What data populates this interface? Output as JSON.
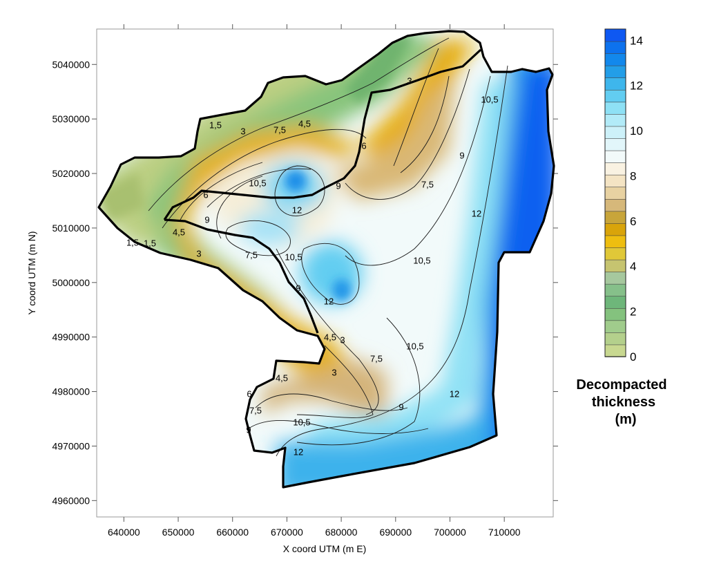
{
  "chart_data": {
    "type": "contour-map",
    "x_axis": {
      "label": "X coord UTM (m E)",
      "range": [
        635000,
        719000
      ],
      "ticks": [
        640000,
        650000,
        660000,
        670000,
        680000,
        690000,
        700000,
        710000
      ],
      "tick_labels": [
        "640000",
        "650000",
        "660000",
        "670000",
        "680000",
        "690000",
        "700000",
        "710000"
      ]
    },
    "y_axis": {
      "label": "Y coord UTM (m N)",
      "range": [
        4957000,
        5046500
      ],
      "ticks": [
        4960000,
        4970000,
        4980000,
        4990000,
        5000000,
        5010000,
        5020000,
        5030000,
        5040000
      ],
      "tick_labels": [
        "4960000",
        "4970000",
        "4980000",
        "4990000",
        "5000000",
        "5010000",
        "5020000",
        "5030000",
        "5040000"
      ]
    },
    "colorbar": {
      "title": [
        "Decompacted",
        "thickness",
        "(m)"
      ],
      "range": [
        0,
        14.5
      ],
      "tick_values": [
        0,
        2,
        4,
        6,
        8,
        10,
        12,
        14
      ],
      "tick_labels": [
        "0",
        "2",
        "4",
        "6",
        "8",
        "10",
        "12",
        "14"
      ],
      "class_colors": [
        "#c8d890",
        "#b4d08c",
        "#a0cc8c",
        "#84c27e",
        "#6eb67a",
        "#86c08a",
        "#a6c89e",
        "#c6c470",
        "#e0c838",
        "#eebe10",
        "#d9a40a",
        "#c8a53a",
        "#d6b87a",
        "#e8d2a2",
        "#f4e4c4",
        "#f9f2e2",
        "#f2fafa",
        "#e2f6fa",
        "#cdf1f9",
        "#b2ebf8",
        "#8ee1f5",
        "#62cdf1",
        "#3eb6ec",
        "#239ee8",
        "#1288ec",
        "#0d72ee",
        "#0e58f2"
      ]
    },
    "contour_labels": [
      "1,5",
      "1,5",
      "1,5",
      "3",
      "3",
      "3",
      "3",
      "3",
      "4,5",
      "4,5",
      "4,5",
      "4,5",
      "6",
      "6",
      "6",
      "7,5",
      "7,5",
      "7,5",
      "7,5",
      "7,5",
      "9",
      "9",
      "9",
      "9",
      "9",
      "9",
      "10,5",
      "10,5",
      "10,5",
      "10,5",
      "10,5",
      "10,5",
      "12",
      "12",
      "12",
      "12",
      "12"
    ]
  }
}
